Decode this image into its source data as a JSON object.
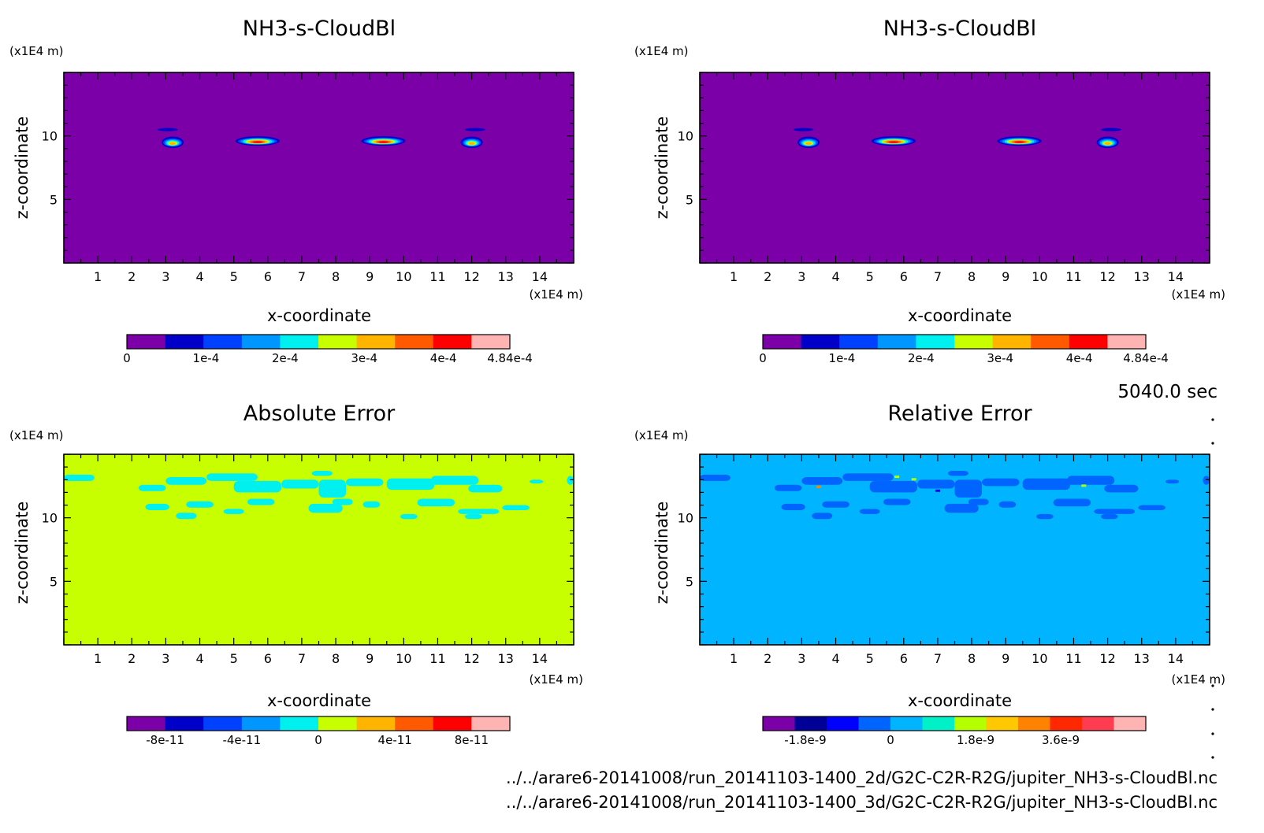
{
  "figure": {
    "time_label": "5040.0 sec",
    "footer_paths": [
      "../../arare6-20141008/run_20141103-1400_2d/G2C-C2R-R2G/jupiter_NH3-s-CloudBl.nc",
      "../../arare6-20141008/run_20141103-1400_3d/G2C-C2R-R2G/jupiter_NH3-s-CloudBl.nc"
    ]
  },
  "chart_data": [
    {
      "type": "heatmap",
      "title": "NH3-s-CloudBl",
      "xlabel": "x-coordinate",
      "ylabel": "z-coordinate",
      "x_unit": "(x1E4 m)",
      "y_unit": "(x1E4 m)",
      "xlim": [
        0,
        15
      ],
      "ylim": [
        0,
        15
      ],
      "x_ticks": [
        1,
        2,
        3,
        4,
        5,
        6,
        7,
        8,
        9,
        10,
        11,
        12,
        13,
        14
      ],
      "y_ticks": [
        5,
        10
      ],
      "background_color": "#7b00a8",
      "colorbar": {
        "min": 0,
        "max": 0.000484,
        "colors": [
          "#7b00a8",
          "#0000c8",
          "#0040ff",
          "#0096ff",
          "#00f0f0",
          "#c8ff00",
          "#ffb400",
          "#ff5a00",
          "#ff0000",
          "#ffb4b4"
        ],
        "tick_values": [
          0,
          0.0001,
          0.0002,
          0.0003,
          0.0004,
          0.000484
        ],
        "tick_labels": [
          "0",
          "1e-4",
          "2e-4",
          "3e-4",
          "4e-4",
          "4.84e-4"
        ]
      },
      "features": [
        {
          "shape": "cloud",
          "x": 3.2,
          "z": 9.5,
          "w": 0.65,
          "h": 0.9,
          "peak": 0.000484,
          "level": 6
        },
        {
          "shape": "cloud",
          "x": 5.7,
          "z": 9.6,
          "w": 1.3,
          "h": 0.75,
          "peak": 0.000484,
          "level": 8
        },
        {
          "shape": "cloud",
          "x": 9.4,
          "z": 9.6,
          "w": 1.3,
          "h": 0.75,
          "peak": 0.000484,
          "level": 8
        },
        {
          "shape": "cloud",
          "x": 12.0,
          "z": 9.5,
          "w": 0.65,
          "h": 0.9,
          "peak": 0.000484,
          "level": 6
        },
        {
          "shape": "wisp",
          "x": 3.05,
          "z": 10.5,
          "w": 0.6,
          "h": 0.25,
          "level": 1
        },
        {
          "shape": "wisp",
          "x": 12.1,
          "z": 10.5,
          "w": 0.6,
          "h": 0.25,
          "level": 1
        }
      ]
    },
    {
      "type": "heatmap",
      "title": "NH3-s-CloudBl",
      "xlabel": "x-coordinate",
      "ylabel": "z-coordinate",
      "x_unit": "(x1E4 m)",
      "y_unit": "(x1E4 m)",
      "xlim": [
        0,
        15
      ],
      "ylim": [
        0,
        15
      ],
      "x_ticks": [
        1,
        2,
        3,
        4,
        5,
        6,
        7,
        8,
        9,
        10,
        11,
        12,
        13,
        14
      ],
      "y_ticks": [
        5,
        10
      ],
      "background_color": "#7b00a8",
      "colorbar": {
        "min": 0,
        "max": 0.000484,
        "colors": [
          "#7b00a8",
          "#0000c8",
          "#0040ff",
          "#0096ff",
          "#00f0f0",
          "#c8ff00",
          "#ffb400",
          "#ff5a00",
          "#ff0000",
          "#ffb4b4"
        ],
        "tick_values": [
          0,
          0.0001,
          0.0002,
          0.0003,
          0.0004,
          0.000484
        ],
        "tick_labels": [
          "0",
          "1e-4",
          "2e-4",
          "3e-4",
          "4e-4",
          "4.84e-4"
        ]
      },
      "features": [
        {
          "shape": "cloud",
          "x": 3.2,
          "z": 9.5,
          "w": 0.65,
          "h": 0.9,
          "peak": 0.000484,
          "level": 6
        },
        {
          "shape": "cloud",
          "x": 5.7,
          "z": 9.6,
          "w": 1.3,
          "h": 0.75,
          "peak": 0.000484,
          "level": 8
        },
        {
          "shape": "cloud",
          "x": 9.4,
          "z": 9.6,
          "w": 1.3,
          "h": 0.75,
          "peak": 0.000484,
          "level": 8
        },
        {
          "shape": "cloud",
          "x": 12.0,
          "z": 9.5,
          "w": 0.65,
          "h": 0.9,
          "peak": 0.000484,
          "level": 6
        },
        {
          "shape": "wisp",
          "x": 3.05,
          "z": 10.5,
          "w": 0.6,
          "h": 0.25,
          "level": 1
        },
        {
          "shape": "wisp",
          "x": 12.1,
          "z": 10.5,
          "w": 0.6,
          "h": 0.25,
          "level": 1
        }
      ]
    },
    {
      "type": "heatmap",
      "title": "Absolute Error",
      "xlabel": "x-coordinate",
      "ylabel": "z-coordinate",
      "x_unit": "(x1E4 m)",
      "y_unit": "(x1E4 m)",
      "xlim": [
        0,
        15
      ],
      "ylim": [
        0,
        15
      ],
      "x_ticks": [
        1,
        2,
        3,
        4,
        5,
        6,
        7,
        8,
        9,
        10,
        11,
        12,
        13,
        14
      ],
      "y_ticks": [
        5,
        10
      ],
      "background_color": "#c8ff00",
      "colorbar": {
        "min": -1e-10,
        "max": 1e-10,
        "colors": [
          "#7b00a8",
          "#0000c8",
          "#0040ff",
          "#0096ff",
          "#00f0f0",
          "#c8ff00",
          "#ffb400",
          "#ff5a00",
          "#ff0000",
          "#ffb4b4"
        ],
        "tick_values": [
          -8e-11,
          -4e-11,
          0,
          4e-11,
          8e-11
        ],
        "tick_labels": [
          "-8e-11",
          "-4e-11",
          "0",
          "4e-11",
          "8e-11"
        ]
      },
      "patch_color": "#00f0f0",
      "patches": [
        [
          0,
          12.9,
          0.9,
          0.5
        ],
        [
          2.2,
          12.1,
          0.8,
          0.5
        ],
        [
          3.0,
          12.6,
          1.2,
          0.6
        ],
        [
          4.2,
          12.9,
          1.5,
          0.6
        ],
        [
          5.0,
          12.0,
          1.4,
          0.9
        ],
        [
          6.4,
          12.3,
          1.1,
          0.7
        ],
        [
          7.5,
          11.6,
          0.8,
          1.4
        ],
        [
          8.3,
          12.5,
          1.1,
          0.6
        ],
        [
          9.5,
          12.2,
          1.4,
          0.9
        ],
        [
          10.8,
          12.6,
          1.4,
          0.7
        ],
        [
          11.9,
          12.0,
          1.0,
          0.6
        ],
        [
          2.4,
          10.6,
          0.7,
          0.5
        ],
        [
          3.6,
          10.8,
          0.8,
          0.5
        ],
        [
          4.7,
          10.3,
          0.6,
          0.4
        ],
        [
          5.4,
          11.0,
          0.8,
          0.5
        ],
        [
          7.2,
          10.4,
          1.0,
          0.7
        ],
        [
          7.9,
          11.0,
          0.6,
          0.5
        ],
        [
          9.9,
          9.9,
          0.5,
          0.4
        ],
        [
          10.4,
          10.9,
          1.1,
          0.6
        ],
        [
          11.6,
          10.3,
          1.2,
          0.4
        ],
        [
          11.8,
          9.9,
          0.5,
          0.4
        ],
        [
          12.9,
          10.6,
          0.8,
          0.4
        ],
        [
          13.7,
          12.7,
          0.4,
          0.3
        ],
        [
          14.8,
          12.6,
          0.2,
          0.7
        ],
        [
          7.3,
          13.3,
          0.6,
          0.4
        ],
        [
          3.3,
          9.9,
          0.6,
          0.5
        ],
        [
          8.8,
          10.8,
          0.5,
          0.5
        ]
      ]
    },
    {
      "type": "heatmap",
      "title": "Relative Error",
      "xlabel": "x-coordinate",
      "ylabel": "z-coordinate",
      "x_unit": "(x1E4 m)",
      "y_unit": "(x1E4 m)",
      "xlim": [
        0,
        15
      ],
      "ylim": [
        0,
        15
      ],
      "x_ticks": [
        1,
        2,
        3,
        4,
        5,
        6,
        7,
        8,
        9,
        10,
        11,
        12,
        13,
        14
      ],
      "y_ticks": [
        5,
        10
      ],
      "background_color": "#00b4ff",
      "colorbar": {
        "min": -2.7e-09,
        "max": 5.4e-09,
        "colors": [
          "#7b00a8",
          "#000096",
          "#0000ff",
          "#0064ff",
          "#00b4ff",
          "#00f0c8",
          "#b4ff00",
          "#ffc800",
          "#ff8200",
          "#ff2800",
          "#ff3c50",
          "#ffb4b4"
        ],
        "tick_values": [
          -1.8e-09,
          0,
          1.8e-09,
          3.6e-09
        ],
        "tick_labels": [
          "-1.8e-9",
          "0",
          "1.8e-9",
          "3.6e-9"
        ]
      },
      "patch_color": "#0064ff",
      "patches": [
        [
          0,
          12.9,
          0.9,
          0.5
        ],
        [
          2.2,
          12.1,
          0.8,
          0.5
        ],
        [
          3.0,
          12.6,
          1.2,
          0.6
        ],
        [
          4.2,
          12.9,
          1.5,
          0.6
        ],
        [
          5.0,
          12.0,
          1.4,
          0.9
        ],
        [
          6.4,
          12.3,
          1.1,
          0.7
        ],
        [
          7.5,
          11.6,
          0.8,
          1.4
        ],
        [
          8.3,
          12.5,
          1.1,
          0.6
        ],
        [
          9.5,
          12.2,
          1.4,
          0.9
        ],
        [
          10.8,
          12.6,
          1.4,
          0.7
        ],
        [
          11.9,
          12.0,
          1.0,
          0.6
        ],
        [
          2.4,
          10.6,
          0.7,
          0.5
        ],
        [
          3.6,
          10.8,
          0.8,
          0.5
        ],
        [
          4.7,
          10.3,
          0.6,
          0.4
        ],
        [
          5.4,
          11.0,
          0.8,
          0.5
        ],
        [
          7.2,
          10.4,
          1.0,
          0.7
        ],
        [
          7.9,
          11.0,
          0.6,
          0.5
        ],
        [
          9.9,
          9.9,
          0.5,
          0.4
        ],
        [
          10.4,
          10.9,
          1.1,
          0.6
        ],
        [
          11.6,
          10.3,
          1.2,
          0.4
        ],
        [
          11.8,
          9.9,
          0.5,
          0.4
        ],
        [
          12.9,
          10.6,
          0.8,
          0.4
        ],
        [
          13.7,
          12.7,
          0.4,
          0.3
        ],
        [
          14.8,
          12.6,
          0.2,
          0.7
        ],
        [
          7.3,
          13.3,
          0.6,
          0.4
        ],
        [
          3.3,
          9.9,
          0.6,
          0.5
        ],
        [
          8.8,
          10.8,
          0.5,
          0.5
        ]
      ],
      "specks": [
        {
          "x": 3.5,
          "z": 12.4,
          "color": "#ff8200"
        },
        {
          "x": 5.8,
          "z": 13.2,
          "color": "#b4ff00"
        },
        {
          "x": 11.3,
          "z": 12.5,
          "color": "#b4ff00"
        },
        {
          "x": 6.3,
          "z": 13.0,
          "color": "#b4ff00"
        },
        {
          "x": 7.0,
          "z": 12.1,
          "color": "#0000ff"
        }
      ]
    }
  ]
}
